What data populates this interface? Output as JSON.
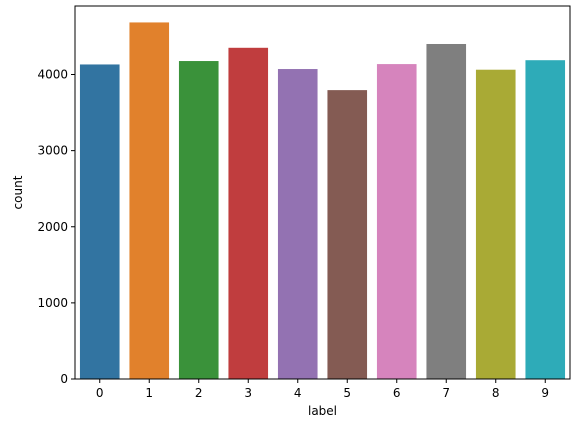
{
  "chart_data": {
    "type": "bar",
    "title": "",
    "xlabel": "label",
    "ylabel": "count",
    "categories": [
      "0",
      "1",
      "2",
      "3",
      "4",
      "5",
      "6",
      "7",
      "8",
      "9"
    ],
    "values": [
      4132,
      4684,
      4177,
      4351,
      4072,
      3795,
      4137,
      4401,
      4063,
      4188
    ],
    "colors": [
      "#3274a1",
      "#e1812c",
      "#3a923a",
      "#c03d3e",
      "#9372b2",
      "#845b53",
      "#d684bd",
      "#7f7f7f",
      "#a9aa35",
      "#2eabb8"
    ],
    "ylim": [
      0,
      4900
    ],
    "yticks": [
      0,
      1000,
      2000,
      3000,
      4000
    ],
    "ytick_labels": [
      "0",
      "1000",
      "2000",
      "3000",
      "4000"
    ],
    "grid": false,
    "legend": "none"
  }
}
